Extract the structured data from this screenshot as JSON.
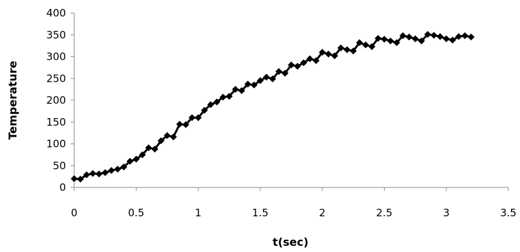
{
  "chart_data": {
    "type": "line",
    "title": "",
    "xlabel": "t(sec)",
    "ylabel": "Temperature",
    "xlim": [
      0,
      3.5
    ],
    "ylim": [
      0,
      400
    ],
    "x_ticks": [
      0,
      0.5,
      1,
      1.5,
      2,
      2.5,
      3,
      3.5
    ],
    "x_tick_labels": [
      "0",
      "0.5",
      "1",
      "1.5",
      "2",
      "2.5",
      "3",
      "3.5"
    ],
    "y_ticks": [
      0,
      50,
      100,
      150,
      200,
      250,
      300,
      350,
      400
    ],
    "y_tick_labels": [
      "0",
      "50",
      "100",
      "150",
      "200",
      "250",
      "300",
      "350",
      "400"
    ],
    "grid": false,
    "legend": "none",
    "line_color": "#000000",
    "marker": "diamond",
    "series": [
      {
        "x": [
          0,
          0.05,
          0.1,
          0.15,
          0.2,
          0.25,
          0.3,
          0.35,
          0.4,
          0.45,
          0.5,
          0.55,
          0.6,
          0.65,
          0.7,
          0.75,
          0.8,
          0.85,
          0.9,
          0.95,
          1.0,
          1.05,
          1.1,
          1.15,
          1.2,
          1.25,
          1.3,
          1.35,
          1.4,
          1.45,
          1.5,
          1.55,
          1.6,
          1.65,
          1.7,
          1.75,
          1.8,
          1.85,
          1.9,
          1.95,
          2.0,
          2.05,
          2.1,
          2.15,
          2.2,
          2.25,
          2.3,
          2.35,
          2.4,
          2.45,
          2.5,
          2.55,
          2.6,
          2.65,
          2.7,
          2.75,
          2.8,
          2.85,
          2.9,
          2.95,
          3.0,
          3.05,
          3.1,
          3.15,
          3.2
        ],
        "values": [
          20,
          19,
          29,
          32,
          31,
          34,
          39,
          42,
          47,
          60,
          65,
          75,
          91,
          88,
          107,
          119,
          116,
          145,
          144,
          160,
          160,
          177,
          190,
          196,
          207,
          209,
          225,
          222,
          237,
          235,
          245,
          253,
          249,
          266,
          262,
          281,
          278,
          286,
          295,
          291,
          310,
          306,
          302,
          320,
          316,
          313,
          332,
          327,
          323,
          342,
          340,
          336,
          332,
          348,
          345,
          341,
          336,
          351,
          349,
          346,
          341,
          338,
          346,
          348,
          345
        ]
      }
    ]
  }
}
